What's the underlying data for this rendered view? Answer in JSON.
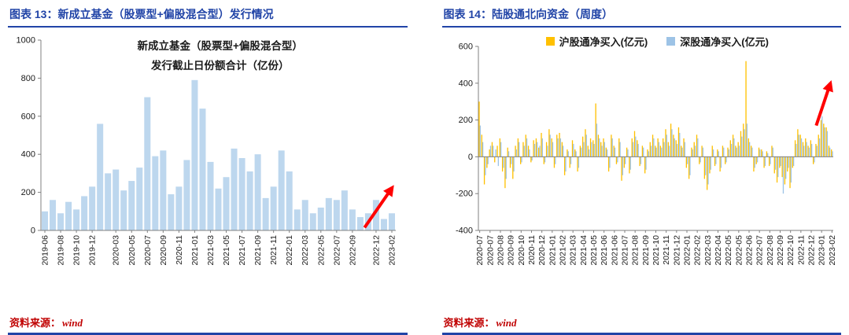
{
  "page": {
    "background": "#FFFFFF",
    "accent_blue": "#2144A7",
    "source_red": "#C00000",
    "arrow_red": "#FF0000",
    "axis_color": "#808080",
    "tick_text_color": "#1A1A1A"
  },
  "figures": [
    {
      "header": "图表 13：新成立基金（股票型+偏股混合型）发行情况",
      "source_label": "资料来源：",
      "source_value": "wind",
      "chart_data": {
        "type": "bar",
        "title_line1": "新成立基金（股票型+偏股混合型）",
        "title_line2": "发行截止日份额合计（亿份）",
        "ylim": [
          0,
          1000
        ],
        "yticks": [
          0,
          200,
          400,
          600,
          800,
          1000
        ],
        "grid": false,
        "legend_position": "none",
        "categories": [
          "2019-06",
          "2019-07",
          "2019-08",
          "2019-09",
          "2019-10",
          "2019-11",
          "2019-12",
          "2020-01",
          "2020-02",
          "2020-03",
          "2020-04",
          "2020-05",
          "2020-06",
          "2020-07",
          "2020-08",
          "2020-09",
          "2020-10",
          "2020-11",
          "2020-12",
          "2021-01",
          "2021-02",
          "2021-03",
          "2021-04",
          "2021-05",
          "2021-06",
          "2021-07",
          "2021-08",
          "2021-09",
          "2021-10",
          "2021-11",
          "2021-12",
          "2022-01",
          "2022-02",
          "2022-03",
          "2022-04",
          "2022-05",
          "2022-06",
          "2022-07",
          "2022-08",
          "2022-09",
          "2022-10",
          "2022-11",
          "2022-12",
          "2023-01",
          "2023-02"
        ],
        "series": [
          {
            "name": "发行截止日份额合计（亿份）",
            "color": "#BDD7EE",
            "values": [
              100,
              160,
              90,
              150,
              110,
              180,
              230,
              560,
              300,
              320,
              210,
              260,
              330,
              700,
              390,
              420,
              190,
              230,
              370,
              790,
              640,
              360,
              220,
              280,
              430,
              380,
              310,
              400,
              170,
              230,
              420,
              310,
              110,
              160,
              90,
              120,
              170,
              160,
              210,
              110,
              70,
              90,
              160,
              60,
              90
            ]
          }
        ],
        "x_tick_labels": [
          "2019-06",
          "2019-08",
          "2019-10",
          "2019-12",
          "2020-03",
          "2020-05",
          "2020-07",
          "2020-09",
          "2020-11",
          "2021-01",
          "2021-03",
          "2021-05",
          "2021-07",
          "2021-09",
          "2021-11",
          "2022-01",
          "2022-03",
          "2022-05",
          "2022-07",
          "2022-09",
          "2022-12",
          "2023-02"
        ],
        "x_tick_indices": [
          0,
          2,
          4,
          6,
          9,
          11,
          13,
          15,
          17,
          19,
          21,
          23,
          25,
          27,
          29,
          31,
          33,
          35,
          37,
          39,
          42,
          44
        ],
        "arrow": {
          "x1": 0.912,
          "y1": 0.985,
          "x2": 0.99,
          "y2": 0.775
        }
      }
    },
    {
      "header": "图表 14：陆股通北向资金（周度）",
      "source_label": "资料来源：",
      "source_value": "wind",
      "chart_data": {
        "type": "bar",
        "ylim": [
          -400,
          600
        ],
        "yticks": [
          -400,
          -200,
          0,
          200,
          400,
          600
        ],
        "grid": false,
        "legend_position": "top",
        "series": [
          {
            "name": "沪股通净买入(亿元)",
            "color": "#FFC000",
            "values": [
              300,
              120,
              -150,
              -60,
              40,
              80,
              -30,
              60,
              100,
              -80,
              -170,
              50,
              -60,
              -120,
              60,
              100,
              -40,
              80,
              120,
              60,
              -30,
              90,
              100,
              50,
              130,
              -40,
              80,
              150,
              100,
              -60,
              120,
              130,
              80,
              -100,
              40,
              -60,
              90,
              40,
              -80,
              60,
              110,
              150,
              60,
              100,
              90,
              290,
              120,
              80,
              100,
              50,
              -80,
              120,
              60,
              -40,
              100,
              -130,
              -60,
              50,
              -90,
              100,
              140,
              90,
              -50,
              60,
              -90,
              40,
              80,
              120,
              60,
              100,
              60,
              100,
              150,
              80,
              180,
              120,
              90,
              160,
              60,
              100,
              -60,
              -120,
              50,
              80,
              120,
              -40,
              60,
              -120,
              -180,
              -90,
              60,
              -50,
              40,
              -80,
              60,
              -40,
              50,
              90,
              120,
              60,
              80,
              140,
              180,
              520,
              100,
              60,
              -80,
              -40,
              50,
              40,
              -60,
              30,
              -50,
              60,
              -90,
              -140,
              -60,
              -110,
              -150,
              -80,
              -170,
              -60,
              90,
              150,
              120,
              80,
              100,
              60,
              90,
              -40,
              70,
              120,
              200,
              180,
              160,
              60,
              40
            ]
          },
          {
            "name": "深股通净买入(亿元)",
            "color": "#9DC3E6",
            "values": [
              170,
              80,
              -100,
              -40,
              60,
              60,
              40,
              -50,
              80,
              -60,
              -120,
              30,
              -40,
              -80,
              40,
              80,
              -30,
              60,
              100,
              40,
              -20,
              70,
              80,
              60,
              100,
              -30,
              60,
              120,
              80,
              -40,
              100,
              100,
              60,
              -80,
              30,
              -40,
              70,
              30,
              -60,
              50,
              80,
              120,
              40,
              80,
              70,
              180,
              100,
              60,
              80,
              40,
              -60,
              100,
              50,
              -30,
              80,
              -100,
              -40,
              40,
              -70,
              80,
              110,
              70,
              -40,
              50,
              -70,
              30,
              60,
              100,
              50,
              80,
              50,
              80,
              120,
              60,
              150,
              100,
              70,
              130,
              50,
              80,
              -40,
              -100,
              40,
              60,
              100,
              -30,
              50,
              -100,
              -150,
              -70,
              40,
              -40,
              30,
              -60,
              50,
              -30,
              40,
              70,
              100,
              50,
              60,
              110,
              150,
              180,
              80,
              50,
              -60,
              -30,
              40,
              30,
              -50,
              20,
              -40,
              50,
              -70,
              -110,
              -50,
              -200,
              -120,
              -60,
              -140,
              -50,
              70,
              120,
              100,
              60,
              80,
              50,
              70,
              -30,
              60,
              100,
              220,
              160,
              140,
              50,
              30
            ]
          }
        ],
        "x_tick_labels": [
          "2020-07",
          "2020-07",
          "2020-08",
          "2020-09",
          "2020-10",
          "2020-11",
          "2020-12",
          "2021-01",
          "2021-02",
          "2021-03",
          "2021-04",
          "2021-05",
          "2021-06",
          "2021-06",
          "2021-07",
          "2021-08",
          "2021-09",
          "2021-10",
          "2021-11",
          "2021-12",
          "2022-01",
          "2022-02",
          "2022-03",
          "2022-04",
          "2022-05",
          "2022-05",
          "2022-06",
          "2022-07",
          "2022-08",
          "2022-09",
          "2022-10",
          "2022-11",
          "2022-12",
          "2023-01",
          "2023-02"
        ],
        "x_tick_every": 4,
        "arrow": {
          "x1": 0.952,
          "y1": 0.43,
          "x2": 0.992,
          "y2": 0.2
        }
      }
    }
  ]
}
